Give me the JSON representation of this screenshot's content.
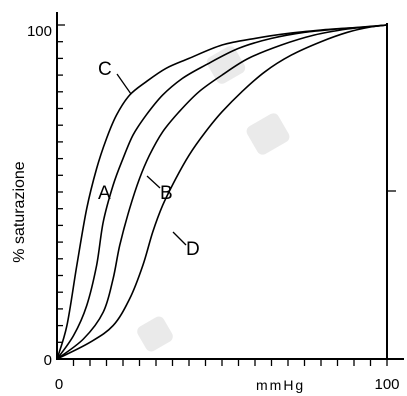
{
  "chart_data": {
    "type": "line",
    "ylabel": "% saturazione",
    "xlabel": "",
    "x_unit_label": "mmHg",
    "xlim": [
      0,
      100
    ],
    "ylim": [
      0,
      100
    ],
    "x_tick_labels": [
      "0",
      "100"
    ],
    "y_tick_labels": [
      "0",
      "100"
    ],
    "grid": false,
    "legend": "none",
    "series": [
      {
        "name": "C",
        "points": [
          [
            0,
            0
          ],
          [
            3,
            10
          ],
          [
            6,
            28
          ],
          [
            9,
            45
          ],
          [
            12,
            57
          ],
          [
            15,
            66
          ],
          [
            18,
            73
          ],
          [
            22,
            79
          ],
          [
            27,
            83
          ],
          [
            33,
            87
          ],
          [
            40,
            90
          ],
          [
            50,
            94
          ],
          [
            60,
            96
          ],
          [
            70,
            97.5
          ],
          [
            80,
            98.5
          ],
          [
            90,
            99.2
          ],
          [
            96,
            99.7
          ],
          [
            100,
            100
          ]
        ]
      },
      {
        "name": "A",
        "points": [
          [
            0,
            0
          ],
          [
            5,
            7
          ],
          [
            9,
            16
          ],
          [
            12,
            28
          ],
          [
            14,
            41
          ],
          [
            17,
            52
          ],
          [
            20,
            60
          ],
          [
            23,
            67
          ],
          [
            27,
            73
          ],
          [
            32,
            79
          ],
          [
            38,
            84
          ],
          [
            45,
            88
          ],
          [
            55,
            93
          ],
          [
            65,
            96
          ],
          [
            75,
            97.8
          ],
          [
            85,
            98.8
          ],
          [
            95,
            99.5
          ],
          [
            100,
            100
          ]
        ]
      },
      {
        "name": "B",
        "points": [
          [
            0,
            0
          ],
          [
            8,
            6
          ],
          [
            14,
            14
          ],
          [
            17,
            24
          ],
          [
            19,
            34
          ],
          [
            22,
            45
          ],
          [
            25,
            54
          ],
          [
            28,
            61
          ],
          [
            32,
            68
          ],
          [
            37,
            74
          ],
          [
            43,
            80
          ],
          [
            50,
            85
          ],
          [
            58,
            90
          ],
          [
            68,
            94
          ],
          [
            78,
            97
          ],
          [
            88,
            98.8
          ],
          [
            95,
            99.5
          ],
          [
            100,
            100
          ]
        ]
      },
      {
        "name": "D",
        "points": [
          [
            0,
            0
          ],
          [
            10,
            5
          ],
          [
            17,
            10
          ],
          [
            22,
            18
          ],
          [
            26,
            28
          ],
          [
            29,
            38
          ],
          [
            32,
            46
          ],
          [
            36,
            54
          ],
          [
            40,
            61
          ],
          [
            45,
            68
          ],
          [
            50,
            74
          ],
          [
            56,
            80
          ],
          [
            63,
            86
          ],
          [
            71,
            91
          ],
          [
            80,
            95
          ],
          [
            88,
            97.8
          ],
          [
            95,
            99.4
          ],
          [
            100,
            100
          ]
        ]
      }
    ],
    "annotations": [
      "C",
      "A",
      "B",
      "D"
    ]
  }
}
